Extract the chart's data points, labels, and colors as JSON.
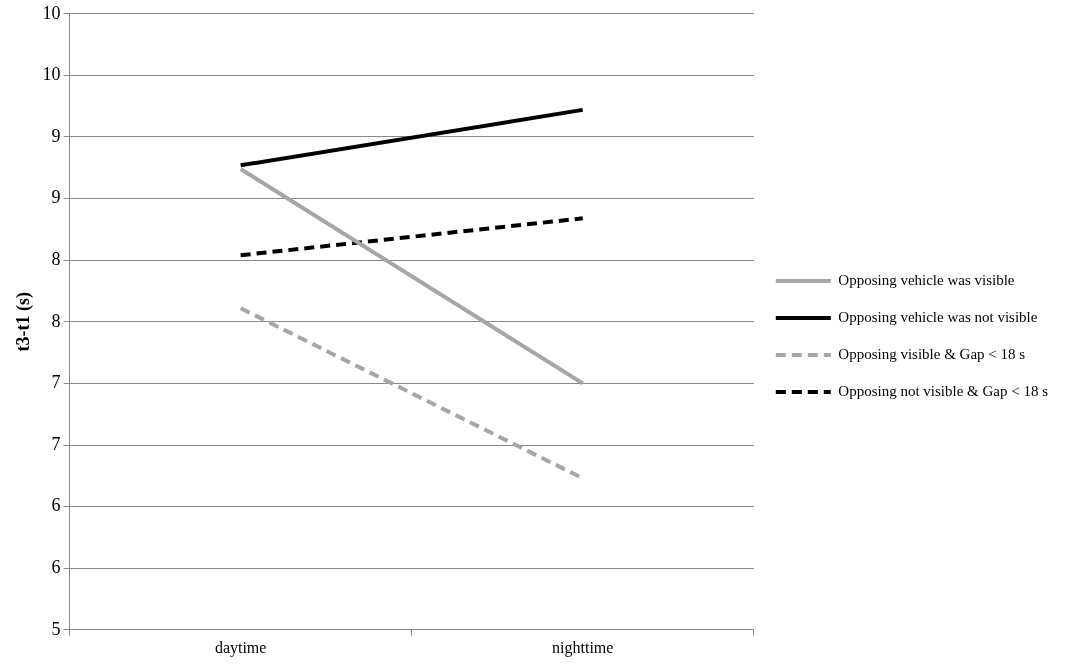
{
  "chart_data": {
    "type": "line",
    "ylabel": "t3-t1 (s)",
    "categories": [
      "daytime",
      "nighttime"
    ],
    "series": [
      {
        "name": "Opposing vehicle was visible",
        "color": "#a6a6a6",
        "line_style": "solid",
        "values": [
          8.74,
          7.0
        ]
      },
      {
        "name": "Opposing vehicle was not visible",
        "color": "#000000",
        "line_style": "solid",
        "values": [
          8.77,
          9.22
        ]
      },
      {
        "name": "Opposing visible & Gap < 18 s",
        "color": "#a6a6a6",
        "line_style": "dashed",
        "values": [
          7.61,
          6.23
        ]
      },
      {
        "name": "Opposing not visible & Gap < 18 s",
        "color": "#000000",
        "line_style": "dashed",
        "values": [
          8.04,
          8.34
        ]
      }
    ],
    "ylim": [
      5,
      10
    ],
    "yticks": [
      5,
      {
        "value": 5.5,
        "label": "6"
      },
      6,
      {
        "value": 6.5,
        "label": "7"
      },
      7,
      {
        "value": 7.5,
        "label": "8"
      },
      8,
      {
        "value": 8.5,
        "label": "9"
      },
      9,
      {
        "value": 9.5,
        "label": "10"
      },
      10
    ],
    "grid": "y",
    "legend": "right",
    "marker": "none"
  }
}
